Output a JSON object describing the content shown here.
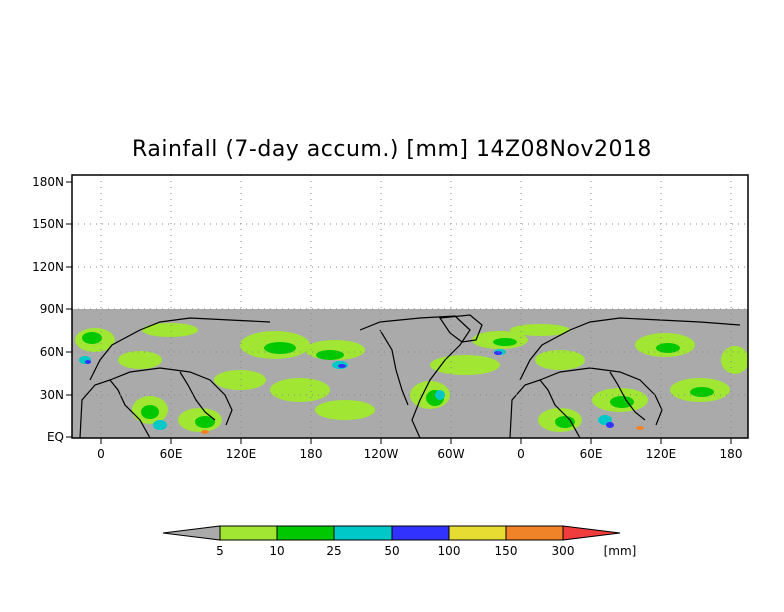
{
  "title": "Rainfall (7-day accum.) [mm] 14Z08Nov2018",
  "map": {
    "lat_labels": [
      "180N",
      "150N",
      "120N",
      "90N",
      "60N",
      "30N",
      "EQ"
    ],
    "lon_labels": [
      "0",
      "60E",
      "120E",
      "180",
      "120W",
      "60W",
      "0",
      "60E",
      "120E",
      "180"
    ],
    "data_background": "#aaaaaa"
  },
  "colorbar": {
    "levels": [
      "5",
      "10",
      "25",
      "50",
      "100",
      "150",
      "300"
    ],
    "units": "[mm]",
    "colors": [
      "#aaaaaa",
      "#a0e632",
      "#00c800",
      "#00c8c8",
      "#3232ff",
      "#e6dc32",
      "#f08228",
      "#f03c3c"
    ]
  }
}
